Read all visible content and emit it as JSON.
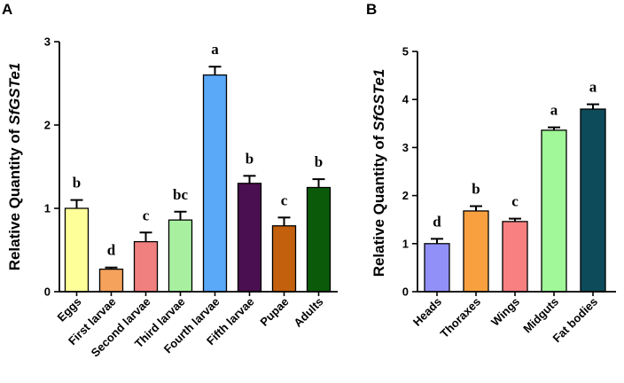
{
  "chart_data": [
    {
      "panel": "A",
      "type": "bar",
      "title": "",
      "ylabel_prefix": "Relative Quantity of ",
      "ylabel_gene": "SfGSTe1",
      "xlabel": "",
      "ylim": [
        0,
        3
      ],
      "yticks": [
        0,
        1,
        2,
        3
      ],
      "categories": [
        "Eggs",
        "First larvae",
        "Second larvae",
        "Third larvae",
        "Fourth larvae",
        "Fifth larvae",
        "Pupae",
        "Adults"
      ],
      "values": [
        1.0,
        0.27,
        0.6,
        0.86,
        2.6,
        1.3,
        0.79,
        1.25
      ],
      "errors": [
        0.1,
        0.02,
        0.11,
        0.1,
        0.1,
        0.09,
        0.1,
        0.1
      ],
      "significance": [
        "b",
        "d",
        "c",
        "bc",
        "a",
        "b",
        "c",
        "b"
      ],
      "colors": [
        "#ffff99",
        "#f5a25d",
        "#f08080",
        "#a8f0a0",
        "#5aa8f8",
        "#4a0f50",
        "#c2600e",
        "#0a5a0a"
      ]
    },
    {
      "panel": "B",
      "type": "bar",
      "title": "",
      "ylabel_prefix": "Relative Quantity of ",
      "ylabel_gene": "SfGSTe1",
      "xlabel": "",
      "ylim": [
        0,
        5
      ],
      "yticks": [
        0,
        1,
        2,
        3,
        4,
        5
      ],
      "categories": [
        "Heads",
        "Thoraxes",
        "Wings",
        "Midguts",
        "Fat bodies"
      ],
      "values": [
        1.0,
        1.68,
        1.46,
        3.36,
        3.8
      ],
      "errors": [
        0.1,
        0.1,
        0.06,
        0.06,
        0.1
      ],
      "significance": [
        "d",
        "b",
        "c",
        "a",
        "a"
      ],
      "colors": [
        "#9090f8",
        "#f8a040",
        "#f88080",
        "#a0f898",
        "#0d4a5a"
      ]
    }
  ]
}
